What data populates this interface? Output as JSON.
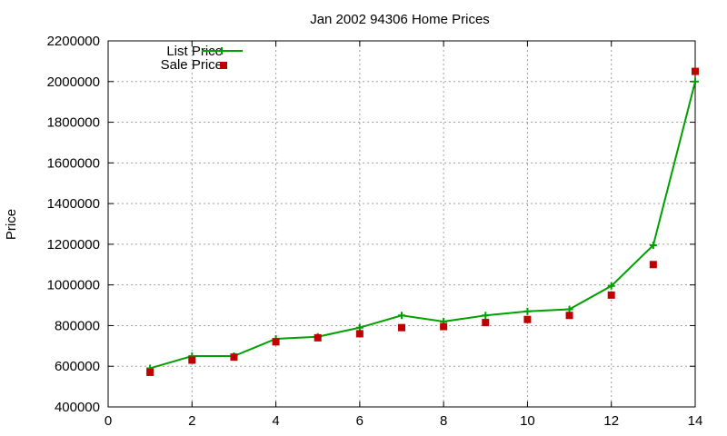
{
  "chart_data": {
    "type": "line",
    "title": "Jan 2002 94306 Home Prices",
    "xlabel": "",
    "ylabel": "Price",
    "xlim": [
      0,
      14
    ],
    "ylim": [
      400000,
      2200000
    ],
    "x_ticks": [
      "0",
      "2",
      "4",
      "6",
      "8",
      "10",
      "12",
      "14"
    ],
    "y_ticks": [
      "400000",
      "600000",
      "800000",
      "1000000",
      "1200000",
      "1400000",
      "1600000",
      "1800000",
      "2000000",
      "2200000"
    ],
    "grid": true,
    "legend_position": "top-left",
    "series": [
      {
        "name": "List Price",
        "style": "linespoints",
        "color": "#00a000",
        "x": [
          1,
          2,
          3,
          4,
          5,
          6,
          7,
          8,
          9,
          10,
          11,
          12,
          13,
          14
        ],
        "y": [
          590000,
          650000,
          650000,
          735000,
          745000,
          790000,
          850000,
          820000,
          850000,
          870000,
          880000,
          995000,
          1195000,
          2000000
        ]
      },
      {
        "name": "Sale Price",
        "style": "points",
        "color": "#c00000",
        "x": [
          1,
          2,
          3,
          4,
          5,
          6,
          7,
          8,
          9,
          10,
          11,
          12,
          13,
          14
        ],
        "y": [
          570000,
          630000,
          645000,
          720000,
          740000,
          760000,
          790000,
          795000,
          815000,
          830000,
          850000,
          950000,
          1100000,
          2050000
        ]
      }
    ]
  }
}
